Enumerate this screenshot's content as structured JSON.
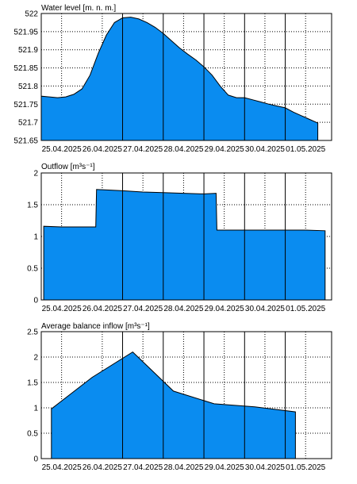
{
  "fill_color": "#0a8cf0",
  "chart_data": [
    {
      "type": "area",
      "title": "Water level [m. n. m.]",
      "ylim": [
        521.65,
        522
      ],
      "yticks": [
        "522",
        "521.95",
        "521.9",
        "521.85",
        "521.8",
        "521.75",
        "521.7",
        "521.65"
      ],
      "ytick_values": [
        522,
        521.95,
        521.9,
        521.85,
        521.8,
        521.75,
        521.7,
        521.65
      ],
      "xticks": [
        "25.04.2025",
        "26.04.2025",
        "27.04.2025",
        "28.04.2025",
        "29.04.2025",
        "30.04.2025",
        "01.05.2025"
      ],
      "xlim": [
        0,
        7.14
      ],
      "x": [
        0,
        0.2,
        0.4,
        0.6,
        0.8,
        1.0,
        1.2,
        1.4,
        1.6,
        1.8,
        2.0,
        2.2,
        2.4,
        2.6,
        2.8,
        3.0,
        3.2,
        3.4,
        3.6,
        3.8,
        4.0,
        4.2,
        4.4,
        4.6,
        4.8,
        5.0,
        5.2,
        5.4,
        5.6,
        5.8,
        6.0,
        6.2,
        6.4,
        6.6,
        6.8
      ],
      "y": [
        521.772,
        521.77,
        521.768,
        521.77,
        521.777,
        521.792,
        521.83,
        521.89,
        521.94,
        521.975,
        521.988,
        521.99,
        521.985,
        521.975,
        521.962,
        521.945,
        521.925,
        521.905,
        521.888,
        521.872,
        521.853,
        521.83,
        521.8,
        521.775,
        521.768,
        521.768,
        521.762,
        521.756,
        521.75,
        521.745,
        521.74,
        521.728,
        521.718,
        521.708,
        521.698
      ]
    },
    {
      "type": "area",
      "title": "Outflow [m³s⁻¹]",
      "ylim": [
        0,
        2
      ],
      "yticks": [
        "2",
        "1.5",
        "1",
        "0.5",
        "0"
      ],
      "ytick_values": [
        2,
        1.5,
        1,
        0.5,
        0
      ],
      "xticks": [
        "25.04.2025",
        "26.04.2025",
        "27.04.2025",
        "28.04.2025",
        "29.04.2025",
        "30.04.2025",
        "01.05.2025"
      ],
      "xlim": [
        0,
        7.14
      ],
      "x": [
        0.06,
        0.5,
        1.0,
        1.34,
        1.36,
        2.0,
        2.5,
        3.0,
        3.5,
        4.0,
        4.3,
        4.32,
        5.0,
        5.5,
        6.0,
        6.5,
        6.98
      ],
      "y": [
        1.16,
        1.15,
        1.15,
        1.15,
        1.74,
        1.72,
        1.7,
        1.69,
        1.68,
        1.67,
        1.68,
        1.1,
        1.1,
        1.1,
        1.1,
        1.1,
        1.09
      ]
    },
    {
      "type": "area",
      "title": "Average balance inflow  [m³s⁻¹]",
      "ylim": [
        0,
        2.5
      ],
      "yticks": [
        "2.5",
        "2",
        "1.5",
        "1",
        "0.5",
        "0"
      ],
      "ytick_values": [
        2.5,
        2,
        1.5,
        1,
        0.5,
        0
      ],
      "xticks": [
        "25.04.2025",
        "26.04.2025",
        "27.04.2025",
        "28.04.2025",
        "29.04.2025",
        "30.04.2025",
        "01.05.2025"
      ],
      "xlim": [
        0,
        7.14
      ],
      "x": [
        0.25,
        1.25,
        2.25,
        3.25,
        4.25,
        5.25,
        6.25
      ],
      "y": [
        0.98,
        1.6,
        2.1,
        1.33,
        1.08,
        1.02,
        0.92
      ]
    }
  ]
}
